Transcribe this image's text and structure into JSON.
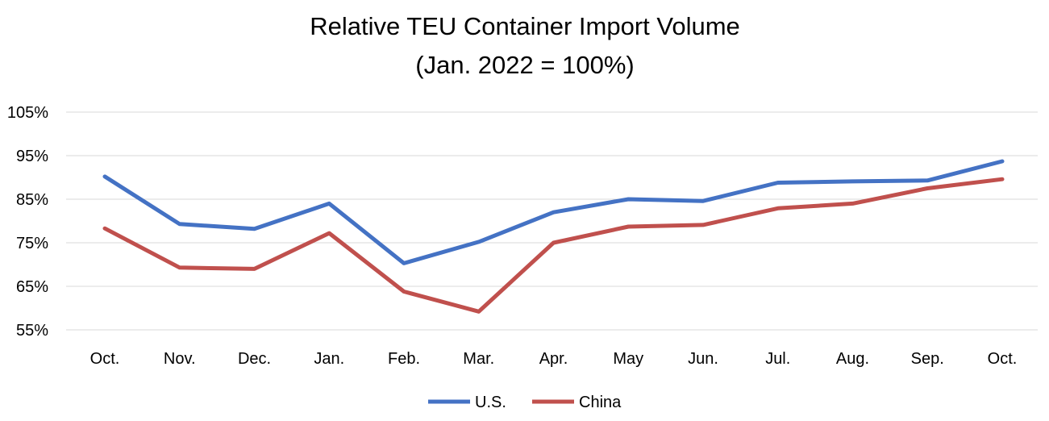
{
  "chart_data": {
    "type": "line",
    "title": "Relative TEU Container Import  Volume",
    "subtitle": "(Jan. 2022 = 100%)",
    "xlabel": "",
    "ylabel": "",
    "categories": [
      "Oct.",
      "Nov.",
      "Dec.",
      "Jan.",
      "Feb.",
      "Mar.",
      "Apr.",
      "May",
      "Jun.",
      "Jul.",
      "Aug.",
      "Sep.",
      "Oct."
    ],
    "y_ticks": [
      55,
      65,
      75,
      85,
      95,
      105
    ],
    "y_tick_labels": [
      "55%",
      "65%",
      "75%",
      "85%",
      "95%",
      "105%"
    ],
    "ylim": [
      55,
      105
    ],
    "grid": true,
    "legend_position": "bottom",
    "series": [
      {
        "name": "U.S.",
        "color": "#4472C4",
        "values": [
          90.2,
          79.3,
          78.2,
          84.0,
          70.3,
          75.2,
          82.0,
          85.0,
          84.6,
          88.8,
          89.1,
          89.3,
          93.7
        ]
      },
      {
        "name": "China",
        "color": "#C0504D",
        "values": [
          78.3,
          69.3,
          69.0,
          77.2,
          63.8,
          59.2,
          75.0,
          78.7,
          79.1,
          82.9,
          84.0,
          87.5,
          89.6
        ]
      }
    ]
  }
}
